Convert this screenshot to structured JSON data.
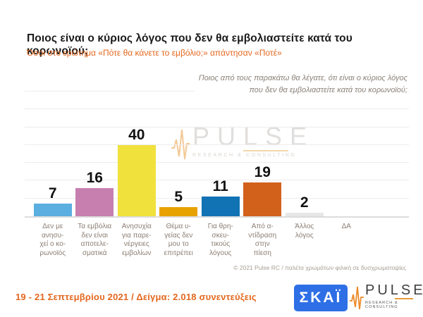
{
  "header": {
    "title": "Ποιος είναι ο κύριος λόγος που δεν θα εμβολιαστείτε κατά του κορωνοϊού;",
    "subtitle": "Όσοι στο ερώτημα «Πότε θα κάνετε το εμβόλιο;» απάντησαν «Ποτέ»"
  },
  "note": {
    "line1": "Ποιος από τους παρακάτω θα λέγατε, ότι είναι ο κύριος λόγος",
    "line2": "που δεν θα εμβολιαστείτε κατά του κορωνοϊού;"
  },
  "watermark": {
    "name": "PULSE",
    "tagline": "RESEARCH & CONSULTING"
  },
  "chart_data": {
    "type": "bar",
    "title": "Ποιος είναι ο κύριος λόγος που δεν θα εμβολιαστείτε κατά του κορωνοϊού;",
    "categories": [
      "Δεν με ανησυχεί ο κορωνοϊός",
      "Τα εμβόλια δεν είναι αποτελεσματικά",
      "Ανησυχία για παρενέργειες εμβολίων",
      "Θέμα υγείας δεν μου το επιτρέπει",
      "Για θρησκευτικούς λόγους",
      "Από αντίδραση στην πίεση",
      "Άλλος λόγος",
      "ΔΑ"
    ],
    "category_label_lines": [
      [
        "Δεν με",
        "ανησυ-",
        "χεί ο κο-",
        "ρωνοϊός"
      ],
      [
        "Τα εμβόλια",
        "δεν είναι",
        "αποτελε-",
        "σματικά"
      ],
      [
        "Ανησυχία",
        "για παρε-",
        "νέργειες",
        "εμβολίων"
      ],
      [
        "Θέμα υ-",
        "γείας δεν",
        "μου το",
        "επιτρέπει"
      ],
      [
        "Για θρη-",
        "σκευ-",
        "τικούς",
        "λόγους"
      ],
      [
        "Από α-",
        "ντίδραση",
        "στην",
        "πίεση"
      ],
      [
        "Άλλος",
        "λόγος"
      ],
      [
        "ΔΑ"
      ]
    ],
    "values": [
      7,
      16,
      40,
      5,
      11,
      19,
      2,
      null
    ],
    "colors": [
      "#5BAEE0",
      "#C77FB0",
      "#F1E13C",
      "#E8A200",
      "#1172B4",
      "#D2611B",
      "#E7E7E7",
      "#E7E7E7"
    ],
    "xlabel": "",
    "ylabel": "",
    "ylim": [
      0,
      70
    ],
    "gridline_step": 10,
    "grid": true,
    "legend": false,
    "value_labels": true
  },
  "copyright": "© 2021 Pulse RC  /  παλέτα χρωμάτων φιλική σε δυσχρωματοψίες",
  "footer": {
    "fieldwork": "19 - 21 Σεπτεμβρίου 2021  /  Δείγμα:  2.018 συνεντεύξεις"
  },
  "logos": {
    "skai": "ΣΚΑΪ",
    "pulse": "PULSE",
    "pulse_tagline": "RESEARCH & CONSULTING"
  },
  "colors": {
    "accent_orange": "#E4671E",
    "title_black": "#1A1A1A",
    "note_gray": "#8B8178",
    "category_label_gray": "#8B7D72",
    "skai_blue": "#2E6FE6",
    "gridline_gray": "#ECECEC"
  }
}
